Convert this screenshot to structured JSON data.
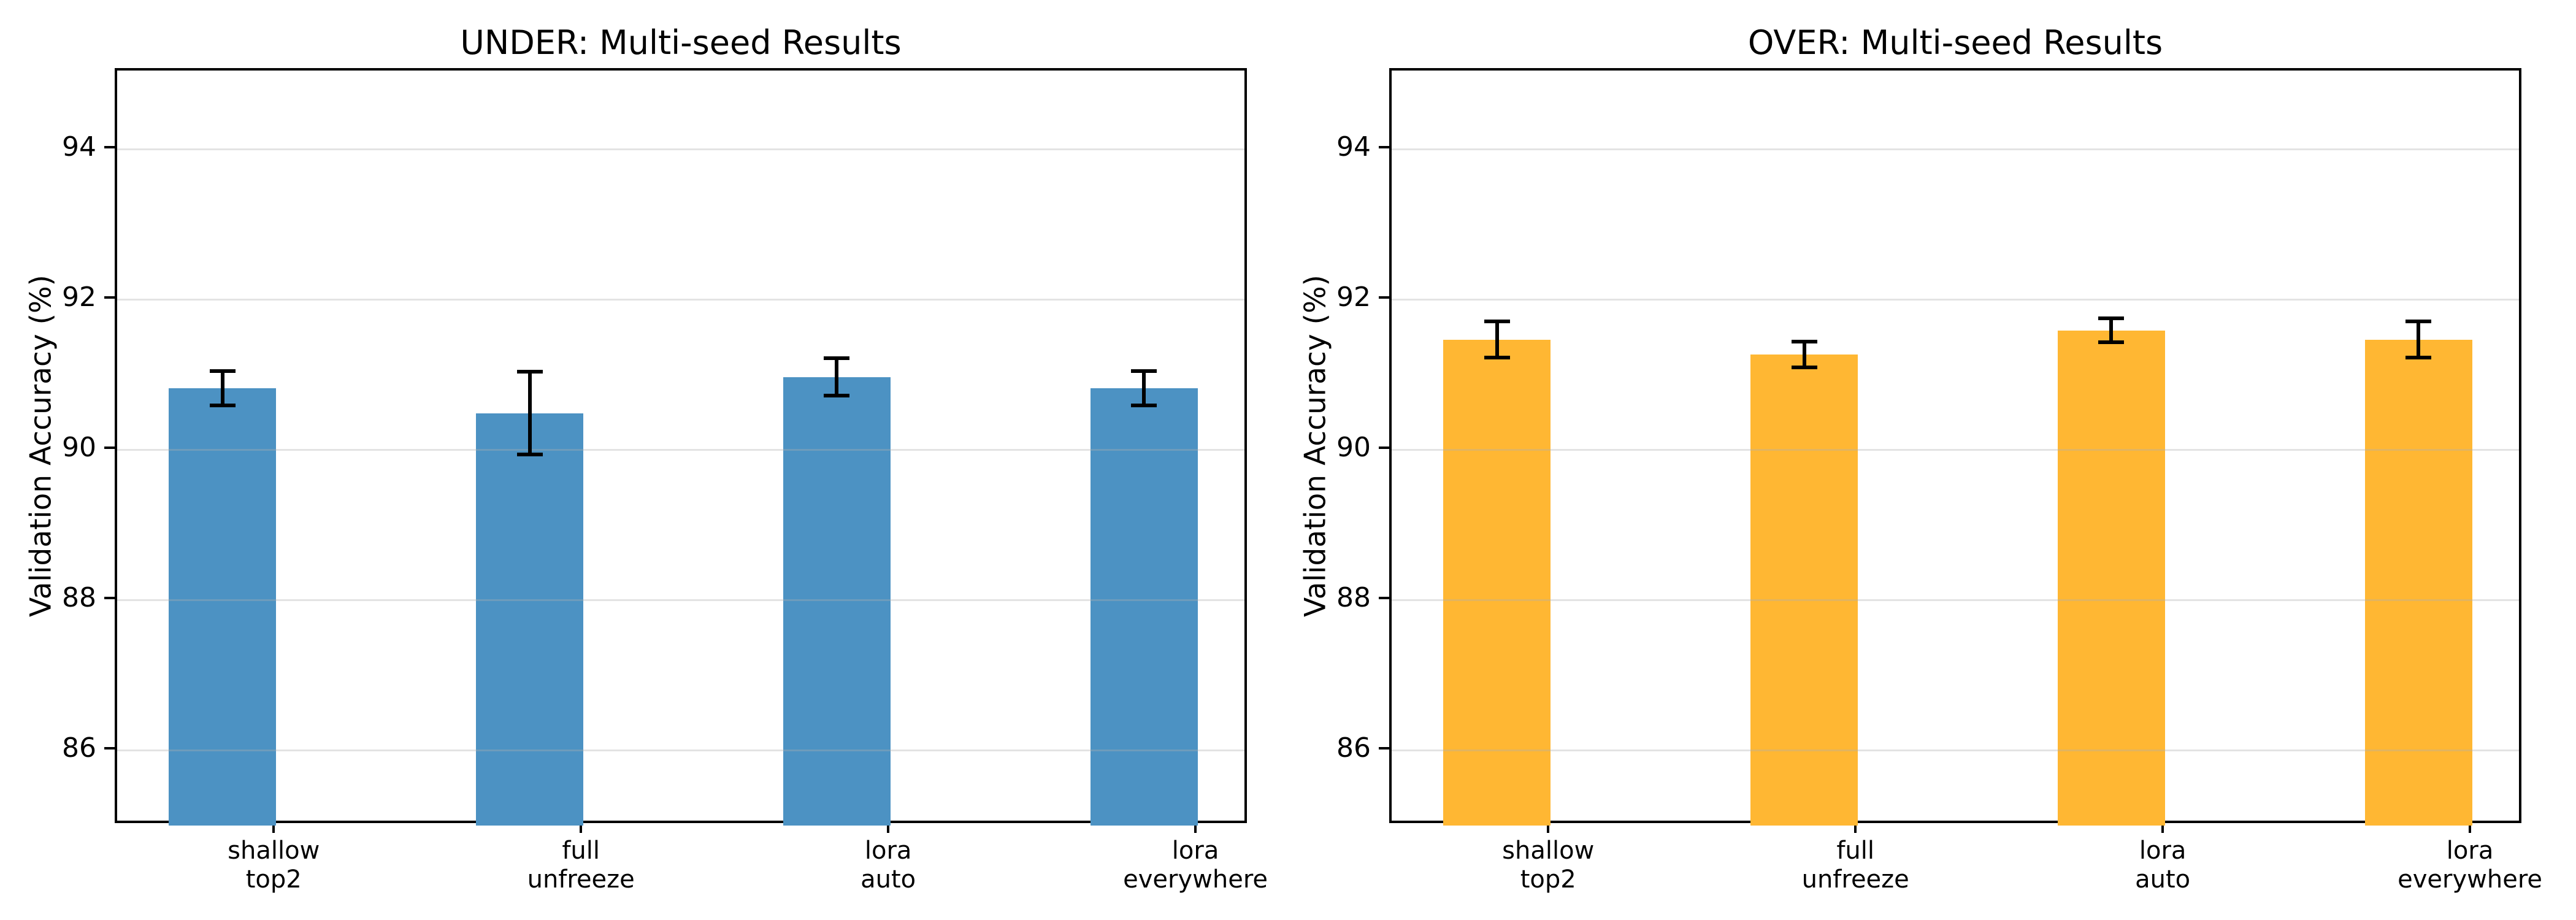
{
  "figure": {
    "background": "#FFFFFF",
    "text_color": "#000000",
    "gridline_color": "#B0B0B0",
    "spine_color": "#000000"
  },
  "chart_data": [
    {
      "type": "bar",
      "title": "UNDER: Multi-seed Results",
      "ylabel": "Validation Accuracy (%)",
      "xlabel": "",
      "categories": [
        "shallow\ntop2",
        "full\nunfreeze",
        "lora\nauto",
        "lora\neverywhere"
      ],
      "values": [
        90.82,
        90.49,
        90.97,
        90.82
      ],
      "errors": [
        0.23,
        0.55,
        0.25,
        0.23
      ],
      "bar_color": "#4C92C3",
      "error_bar_color": "#000000",
      "yticks": [
        86,
        88,
        90,
        92,
        94
      ],
      "ylim": [
        85.0,
        95.05
      ],
      "grid": "horizontal",
      "legend": null
    },
    {
      "type": "bar",
      "title": "OVER: Multi-seed Results",
      "ylabel": "Validation Accuracy (%)",
      "xlabel": "",
      "categories": [
        "shallow\ntop2",
        "full\nunfreeze",
        "lora\nauto",
        "lora\neverywhere"
      ],
      "values": [
        91.47,
        91.27,
        91.59,
        91.47
      ],
      "errors": [
        0.24,
        0.17,
        0.16,
        0.24
      ],
      "bar_color": "#FFB733",
      "error_bar_color": "#000000",
      "yticks": [
        86,
        88,
        90,
        92,
        94
      ],
      "ylim": [
        85.0,
        95.05
      ],
      "grid": "horizontal",
      "legend": null
    }
  ]
}
